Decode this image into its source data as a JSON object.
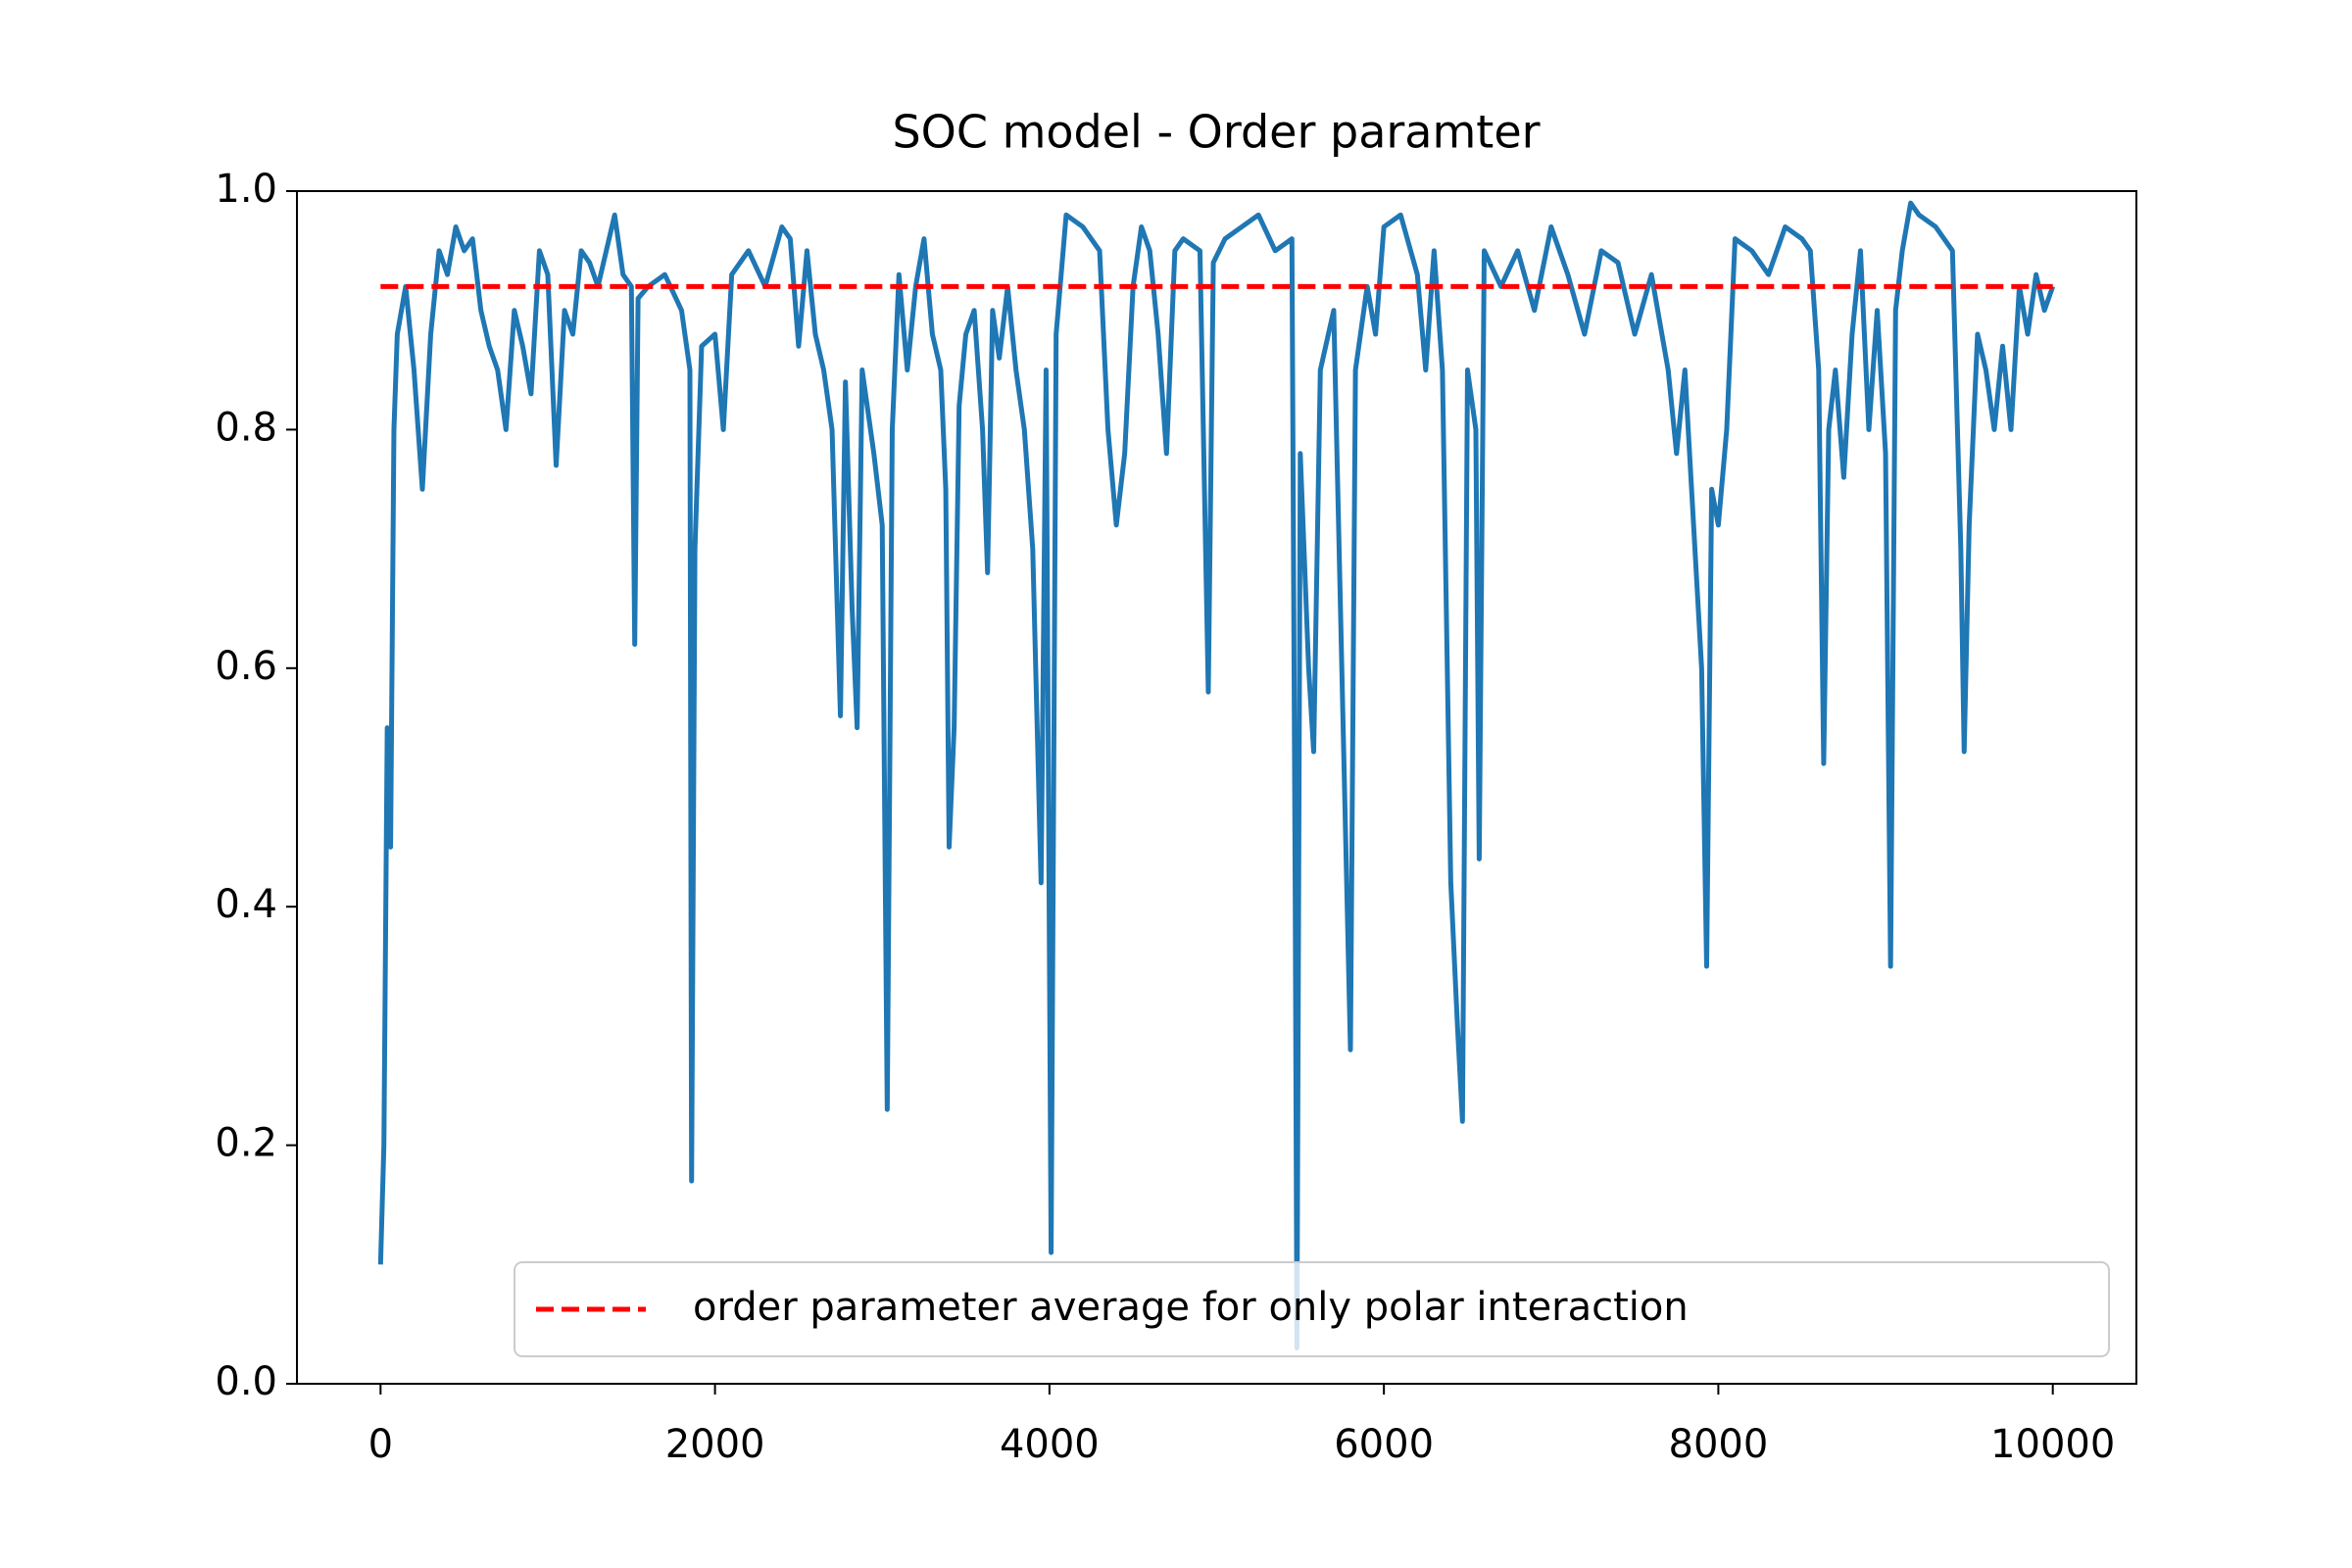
{
  "chart_data": {
    "type": "line",
    "title": "SOC model - Order paramter",
    "xlim": [
      -500,
      10500
    ],
    "xticks": [
      0,
      2000,
      4000,
      6000,
      8000,
      10000
    ],
    "ylim": [
      0,
      1
    ],
    "yticks": [
      {
        "value": 0,
        "label": "0.0"
      },
      0.2,
      0.4,
      0.6,
      0.8,
      {
        "value": 1,
        "label": "1.0"
      }
    ],
    "legend": "lower right",
    "series": [
      {
        "color": "#1f77b4",
        "style": "solid",
        "x": [
          0,
          20,
          40,
          60,
          80,
          100,
          150,
          200,
          250,
          300,
          350,
          400,
          450,
          500,
          550,
          600,
          650,
          700,
          750,
          800,
          850,
          900,
          950,
          1000,
          1050,
          1100,
          1150,
          1200,
          1250,
          1300,
          1350,
          1400,
          1450,
          1500,
          1520,
          1540,
          1600,
          1700,
          1800,
          1850,
          1860,
          1880,
          1920,
          2000,
          2050,
          2100,
          2200,
          2300,
          2400,
          2450,
          2500,
          2550,
          2600,
          2650,
          2700,
          2750,
          2780,
          2820,
          2850,
          2880,
          2950,
          3000,
          3030,
          3060,
          3100,
          3150,
          3200,
          3250,
          3300,
          3350,
          3380,
          3400,
          3430,
          3460,
          3500,
          3550,
          3600,
          3630,
          3660,
          3700,
          3750,
          3800,
          3850,
          3900,
          3950,
          3980,
          4010,
          4040,
          4100,
          4200,
          4300,
          4350,
          4400,
          4450,
          4500,
          4550,
          4600,
          4650,
          4700,
          4750,
          4800,
          4900,
          4950,
          4980,
          5050,
          5150,
          5250,
          5350,
          5450,
          5470,
          5480,
          5500,
          5550,
          5580,
          5620,
          5700,
          5800,
          5830,
          5900,
          5950,
          6000,
          6100,
          6200,
          6250,
          6300,
          6350,
          6400,
          6440,
          6470,
          6500,
          6550,
          6570,
          6600,
          6700,
          6800,
          6900,
          7000,
          7100,
          7200,
          7300,
          7400,
          7500,
          7600,
          7700,
          7750,
          7800,
          7900,
          7930,
          7960,
          8000,
          8050,
          8100,
          8200,
          8300,
          8400,
          8500,
          8550,
          8600,
          8630,
          8660,
          8700,
          8750,
          8800,
          8850,
          8900,
          8950,
          9000,
          9030,
          9060,
          9100,
          9150,
          9200,
          9300,
          9400,
          9450,
          9470,
          9500,
          9550,
          9600,
          9650,
          9700,
          9750,
          9800,
          9850,
          9900,
          9950,
          10000
        ],
        "values": [
          0.1,
          0.2,
          0.55,
          0.45,
          0.8,
          0.88,
          0.92,
          0.85,
          0.75,
          0.88,
          0.95,
          0.93,
          0.97,
          0.95,
          0.96,
          0.9,
          0.87,
          0.85,
          0.8,
          0.9,
          0.87,
          0.83,
          0.95,
          0.93,
          0.77,
          0.9,
          0.88,
          0.95,
          0.94,
          0.92,
          0.95,
          0.98,
          0.93,
          0.92,
          0.62,
          0.91,
          0.92,
          0.93,
          0.9,
          0.85,
          0.17,
          0.7,
          0.87,
          0.88,
          0.8,
          0.93,
          0.95,
          0.92,
          0.97,
          0.96,
          0.87,
          0.95,
          0.88,
          0.85,
          0.8,
          0.56,
          0.84,
          0.65,
          0.55,
          0.85,
          0.78,
          0.72,
          0.23,
          0.8,
          0.93,
          0.85,
          0.92,
          0.96,
          0.88,
          0.85,
          0.75,
          0.45,
          0.55,
          0.82,
          0.88,
          0.9,
          0.8,
          0.68,
          0.9,
          0.86,
          0.92,
          0.85,
          0.8,
          0.7,
          0.42,
          0.85,
          0.11,
          0.88,
          0.98,
          0.97,
          0.95,
          0.8,
          0.72,
          0.78,
          0.92,
          0.97,
          0.95,
          0.88,
          0.78,
          0.95,
          0.96,
          0.95,
          0.58,
          0.94,
          0.96,
          0.97,
          0.98,
          0.95,
          0.96,
          0.4,
          0.03,
          0.78,
          0.6,
          0.53,
          0.85,
          0.9,
          0.28,
          0.85,
          0.92,
          0.88,
          0.97,
          0.98,
          0.93,
          0.85,
          0.95,
          0.85,
          0.42,
          0.3,
          0.22,
          0.85,
          0.8,
          0.44,
          0.95,
          0.92,
          0.95,
          0.9,
          0.97,
          0.93,
          0.88,
          0.95,
          0.94,
          0.88,
          0.93,
          0.85,
          0.78,
          0.85,
          0.6,
          0.35,
          0.75,
          0.72,
          0.8,
          0.96,
          0.95,
          0.93,
          0.97,
          0.96,
          0.95,
          0.85,
          0.52,
          0.8,
          0.85,
          0.76,
          0.88,
          0.95,
          0.8,
          0.9,
          0.78,
          0.35,
          0.9,
          0.95,
          0.99,
          0.98,
          0.97,
          0.95,
          0.7,
          0.53,
          0.72,
          0.88,
          0.85,
          0.8,
          0.87,
          0.8,
          0.92,
          0.88,
          0.93,
          0.9,
          0.92
        ]
      },
      {
        "name": "order parameter average for only polar interaction",
        "color": "#ff0000",
        "style": "dashed",
        "x": [
          0,
          10000
        ],
        "values": [
          0.92,
          0.92
        ]
      }
    ]
  }
}
